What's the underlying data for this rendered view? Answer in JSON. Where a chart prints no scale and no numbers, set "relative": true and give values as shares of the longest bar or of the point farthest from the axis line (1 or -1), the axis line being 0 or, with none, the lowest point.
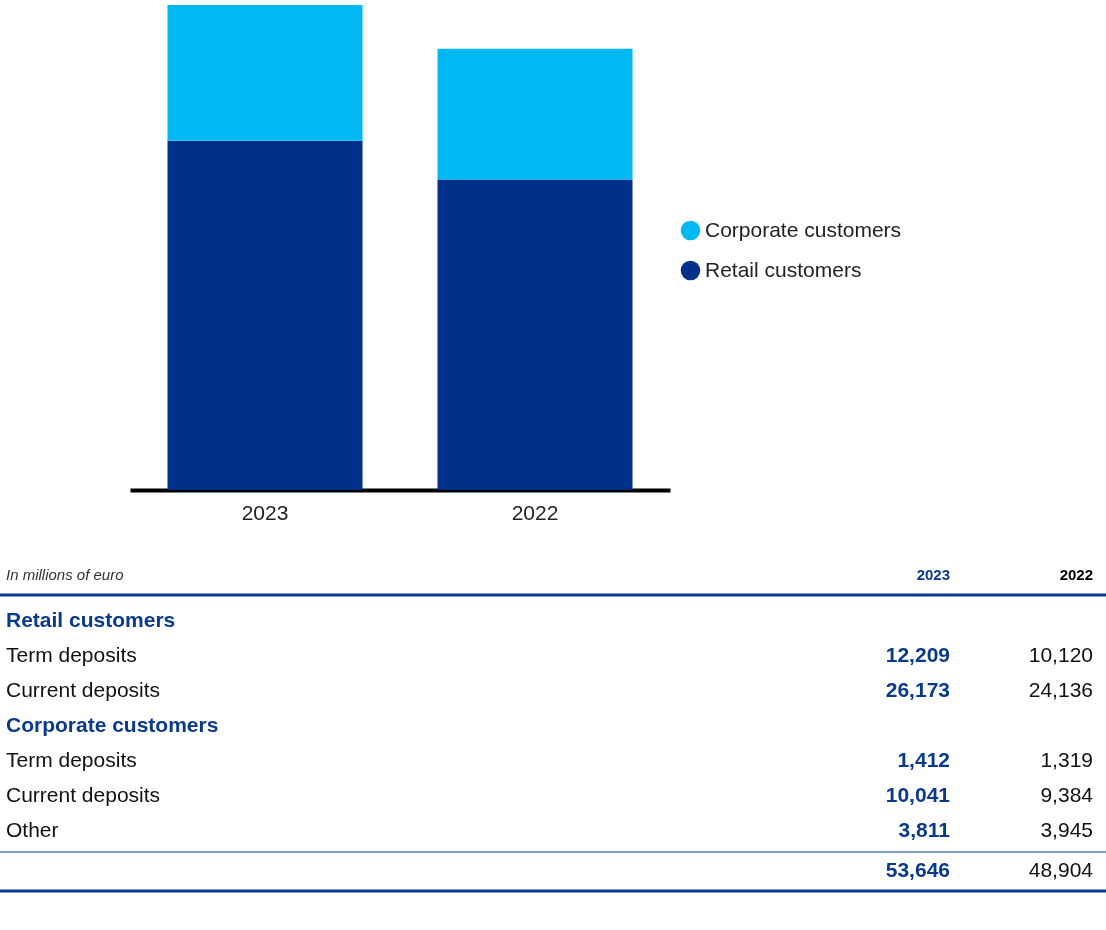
{
  "chart_data": [
    {
      "type": "bar",
      "categories": [
        "2023",
        "2022"
      ],
      "stacked": true,
      "relative": true,
      "legend": "right",
      "series": [
        {
          "name": "Retail customers",
          "color": "#003087",
          "values": [
            0.72,
            0.64
          ]
        },
        {
          "name": "Corporate customers",
          "color": "#00b9f2",
          "values": [
            0.28,
            0.27
          ]
        }
      ]
    },
    {
      "type": "other",
      "annotations": [
        "In millions of euro"
      ],
      "categories": [
        "2023",
        "2022"
      ],
      "y_categories": [
        "Retail customers",
        "Term deposits",
        "Current deposits",
        "Corporate customers",
        "Term deposits",
        "Current deposits",
        "Other",
        null
      ],
      "cell_labels": [
        [
          null,
          null
        ],
        [
          "12,209",
          "10,120"
        ],
        [
          "26,173",
          "24,136"
        ],
        [
          null,
          null
        ],
        [
          "1,412",
          "1,319"
        ],
        [
          "10,041",
          "9,384"
        ],
        [
          "3,811",
          "3,945"
        ],
        [
          "53,646",
          "48,904"
        ]
      ]
    }
  ]
}
